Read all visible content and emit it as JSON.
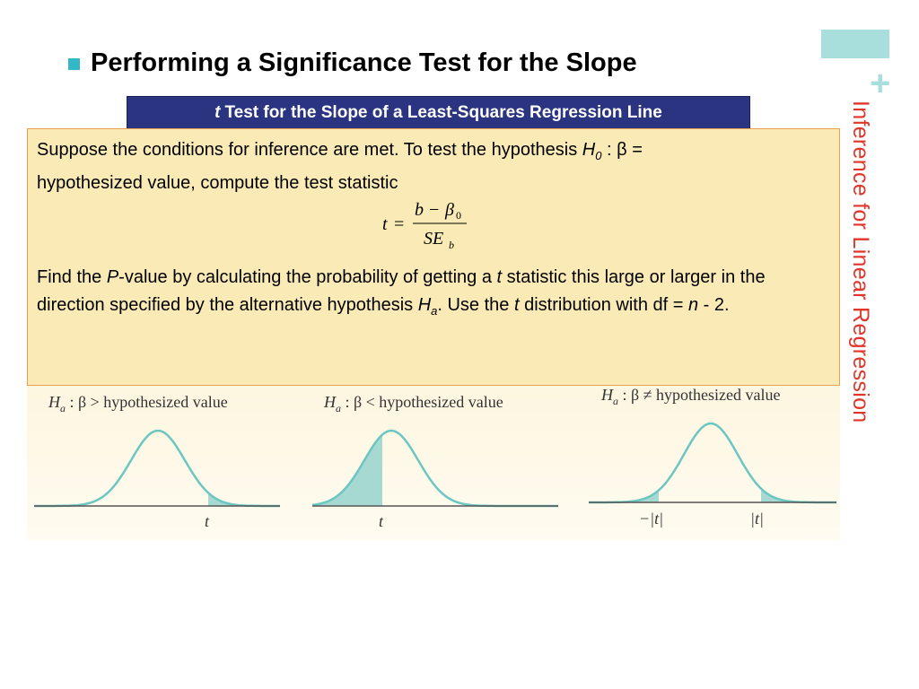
{
  "slide": {
    "side_title": "Inference for Linear Regression",
    "heading": "Performing a Significance Test for the Slope",
    "banner": {
      "italic": "t",
      "rest": "Test for the Slope of a Least-Squares Regression Line"
    },
    "para1": {
      "text": "Suppose the conditions for inference are met. To test the hypothesis ",
      "h": "H",
      "h_sub": "0",
      "colon_beta": " : β = ",
      "rest": "hypothesized value, compute the test statistic"
    },
    "formula": {
      "t": "t",
      "eq": "=",
      "num_b": "b",
      "num_minus": "−",
      "num_beta": "β",
      "num_sub": "0",
      "den": "SE",
      "den_sub": "b"
    },
    "para2": {
      "a": "Find the ",
      "p": "P",
      "b": "-value by calculating the probability of getting a ",
      "t1": "t",
      "c": " statistic this large or larger in the direction specified by the alternative hypothesis ",
      "ha": "H",
      "ha_sub": "a",
      "d": ". Use the ",
      "t2": "t",
      "e": " distribution with df = ",
      "n": "n",
      "f": " - 2."
    },
    "panels": [
      {
        "label_h": "H",
        "label_sub": "a",
        "label_op": " : β > hypothesized value",
        "tail": "right",
        "tick": "t"
      },
      {
        "label_h": "H",
        "label_sub": "a",
        "label_op": " : β < hypothesized value",
        "tail": "left",
        "tick": "t"
      },
      {
        "label_h": "H",
        "label_sub": "a",
        "label_op": " : β ≠ hypothesized value",
        "tail": "both",
        "tick_left": "−|t|",
        "tick_right": "|t|"
      }
    ],
    "colors": {
      "accent": "#36b7c6",
      "deco": "#a8dedb",
      "side_title": "#e0362a",
      "banner": "#2a3480",
      "box": "#faeab5",
      "box_border": "#e8a052",
      "curve": "#6cc6c1",
      "tail_fill": "#a6d9d2"
    }
  }
}
